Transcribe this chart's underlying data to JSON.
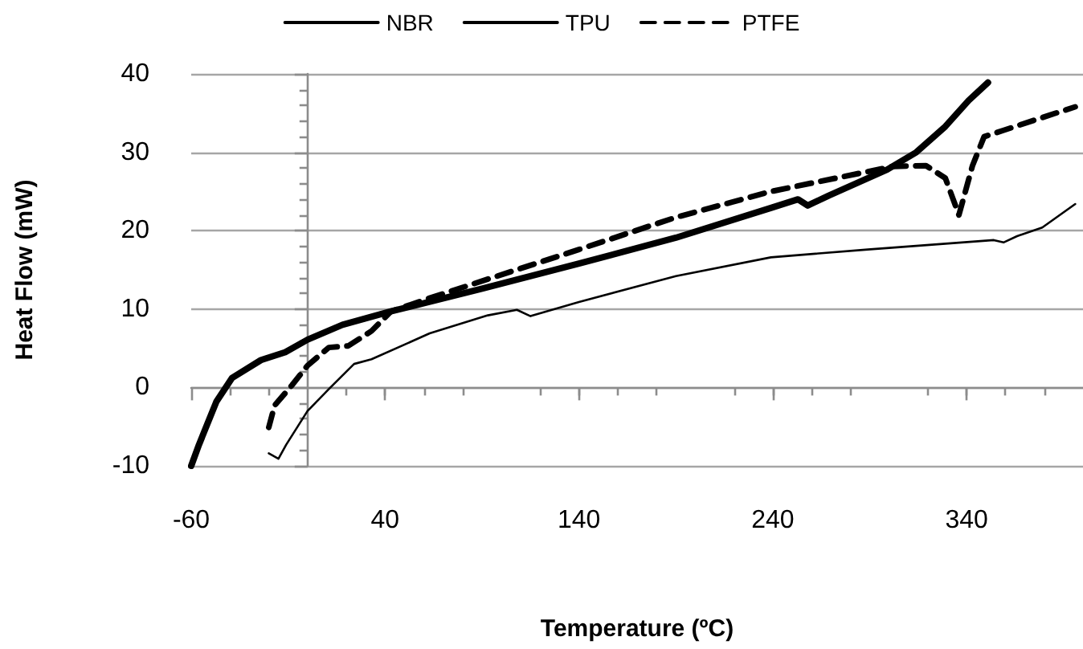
{
  "chart_data": {
    "type": "line",
    "xlabel": "Temperature (ºC)",
    "ylabel": "Heat Flow (mW)",
    "xlim": [
      -60,
      400
    ],
    "xticks": [
      -60,
      40,
      140,
      240,
      340
    ],
    "ylim": [
      -10,
      40
    ],
    "yticks": [
      -10,
      0,
      10,
      20,
      30,
      40
    ],
    "grid": "y",
    "legend": "top",
    "marker": "none",
    "series": [
      {
        "name": "NBR",
        "color": "#000000",
        "line_style": "solid",
        "x": [
          -60,
          -56,
          -47,
          -39,
          -24,
          -11.5,
          0,
          18,
          43,
          90,
          140,
          190,
          239,
          253,
          258,
          269,
          299,
          314,
          329,
          341,
          351
        ],
        "values": [
          -10,
          -7.3,
          -1.8,
          1.2,
          3.5,
          4.5,
          6.1,
          8,
          9.7,
          12.6,
          15.8,
          19.1,
          22.9,
          24,
          23.2,
          24.5,
          27.8,
          30,
          33.3,
          36.6,
          38.9
        ]
      },
      {
        "name": "TPU",
        "color": "#000000",
        "line_style": "solid",
        "x": [
          -20,
          -15,
          -11,
          0,
          11,
          24,
          33,
          63,
          93,
          108,
          115,
          140,
          190,
          239,
          289,
          354,
          359,
          366,
          379,
          396
        ],
        "values": [
          -8.4,
          -9.1,
          -7.3,
          -3,
          -0.2,
          3,
          3.6,
          6.9,
          9.2,
          9.9,
          9.1,
          10.9,
          14.2,
          16.6,
          17.6,
          18.8,
          18.5,
          19.3,
          20.4,
          23.4
        ]
      },
      {
        "name": "PTFE",
        "color": "#000000",
        "line_style": "dashed",
        "x": [
          -20,
          -17,
          -8,
          0,
          11,
          21,
          33,
          43,
          63,
          140,
          190,
          239,
          302,
          319,
          329,
          336,
          343,
          349,
          359,
          386,
          396
        ],
        "values": [
          -5.1,
          -2.3,
          0.3,
          2.8,
          5.1,
          5.3,
          7.2,
          9.7,
          11.4,
          17.6,
          21.7,
          25,
          28.2,
          28.3,
          26.7,
          22,
          28.3,
          32,
          32.8,
          35,
          35.8
        ]
      }
    ]
  }
}
